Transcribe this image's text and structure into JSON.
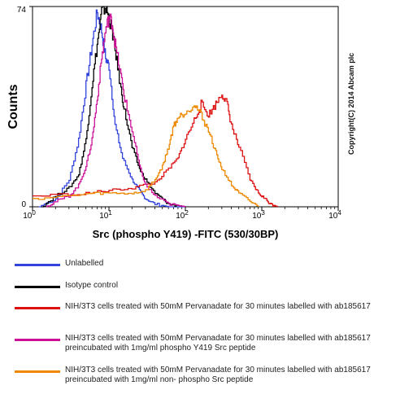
{
  "watermark": "Copyright(C) 2014 Abcam plc",
  "chart_data": {
    "type": "line",
    "title": "",
    "xlabel": "Src (phospho Y419) -FITC (530/30BP)",
    "ylabel": "Counts",
    "x_scale": "log",
    "xlim": [
      1,
      10000
    ],
    "ylim": [
      0,
      74
    ],
    "x_ticks": [
      {
        "value": 1,
        "base": "10",
        "exp": "0"
      },
      {
        "value": 10,
        "base": "10",
        "exp": "1"
      },
      {
        "value": 100,
        "base": "10",
        "exp": "2"
      },
      {
        "value": 1000,
        "base": "10",
        "exp": "3"
      },
      {
        "value": 10000,
        "base": "10",
        "exp": "4"
      }
    ],
    "y_ticks": [
      {
        "value": 0,
        "label": "0"
      },
      {
        "value": 74,
        "label": "74"
      }
    ],
    "grid": false,
    "legend_position": "below",
    "series": [
      {
        "name": "Unlabelled",
        "color": "#3344dd",
        "x": [
          1.2,
          2,
          3,
          4,
          5,
          6,
          7,
          8,
          9,
          10,
          12,
          15,
          20,
          25,
          30,
          40,
          60,
          100
        ],
        "y": [
          0,
          3,
          10,
          25,
          45,
          60,
          72,
          65,
          55,
          52,
          30,
          18,
          10,
          6,
          3,
          1,
          0,
          0
        ]
      },
      {
        "name": "Isotype control",
        "color": "#000000",
        "x": [
          1.3,
          2,
          3,
          4,
          5,
          6,
          7,
          8,
          9,
          10,
          11,
          12,
          14,
          16,
          20,
          25,
          30,
          40,
          50,
          60,
          80,
          100
        ],
        "y": [
          0,
          4,
          7,
          12,
          25,
          45,
          60,
          72,
          74,
          70,
          65,
          58,
          45,
          35,
          22,
          14,
          10,
          5,
          3,
          1,
          0.5,
          0
        ]
      },
      {
        "name": "NIH/3T3 cells treated with 50mM Pervanadate for 30 minutes labelled with ab185617",
        "color": "#dd1111",
        "x": [
          1,
          5,
          10,
          20,
          40,
          60,
          80,
          100,
          130,
          160,
          200,
          250,
          300,
          350,
          400,
          500,
          700,
          900,
          1100,
          1300,
          1600
        ],
        "y": [
          4,
          5,
          6,
          7,
          9,
          14,
          18,
          25,
          32,
          38,
          34,
          38,
          42,
          38,
          30,
          22,
          10,
          5,
          3,
          1,
          0
        ]
      },
      {
        "name": "NIH/3T3 cells treated with 50mM Pervanadate for 30 minutes labelled with ab185617 preincubated with 1mg/ml phospho Y419 Src peptide",
        "color": "#cc1199",
        "x": [
          1.5,
          2,
          3,
          4,
          5,
          6,
          7,
          8,
          9,
          10,
          11,
          12,
          14,
          16,
          20,
          25,
          30,
          40,
          60,
          80,
          100
        ],
        "y": [
          0,
          2,
          4,
          8,
          15,
          25,
          40,
          55,
          65,
          70,
          68,
          60,
          50,
          40,
          28,
          15,
          8,
          4,
          1,
          0.5,
          0
        ]
      },
      {
        "name": "NIH/3T3 cells treated with 50mM Pervanadate for 30 minutes labelled with ab185617 preincubated with 1mg/ml non- phospho Src peptide",
        "color": "#ee8800",
        "x": [
          1,
          3,
          6,
          10,
          20,
          30,
          40,
          50,
          60,
          70,
          80,
          100,
          130,
          160,
          200,
          250,
          300,
          400,
          500,
          700,
          900
        ],
        "y": [
          3,
          4,
          5,
          5,
          5,
          6,
          10,
          15,
          22,
          30,
          33,
          35,
          38,
          34,
          28,
          20,
          14,
          8,
          5,
          2,
          0
        ]
      }
    ]
  }
}
